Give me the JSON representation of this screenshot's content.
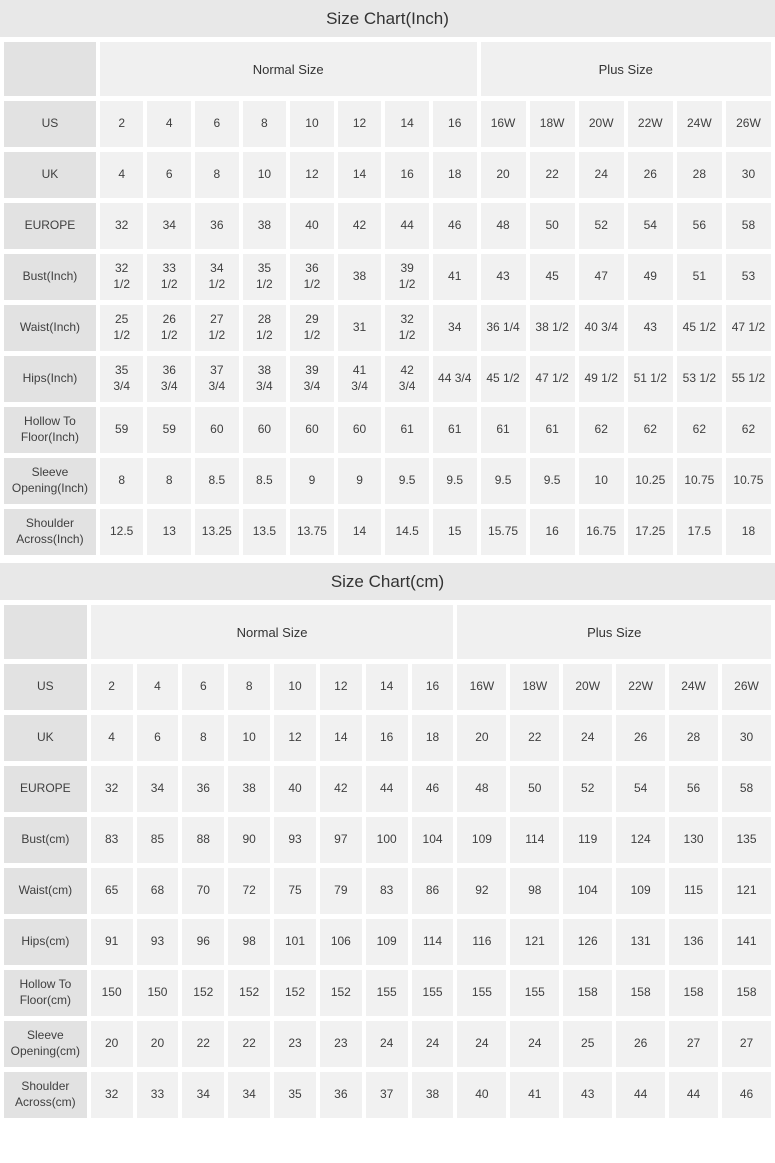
{
  "colors": {
    "title_band_bg": "#e8e8e8",
    "group_header_bg": "#f0f0f0",
    "row_label_bg": "#e2e2e2",
    "data_cell_bg": "#f1f1f1",
    "gap_color": "#ffffff",
    "text": "#3f3f3f"
  },
  "sections": [
    {
      "title": "Size Chart(Inch)",
      "group_headers": {
        "normal": "Normal Size",
        "plus": "Plus Size"
      },
      "rows": [
        {
          "label": "US",
          "values": [
            "2",
            "4",
            "6",
            "8",
            "10",
            "12",
            "14",
            "16",
            "16W",
            "18W",
            "20W",
            "22W",
            "24W",
            "26W"
          ]
        },
        {
          "label": "UK",
          "values": [
            "4",
            "6",
            "8",
            "10",
            "12",
            "14",
            "16",
            "18",
            "20",
            "22",
            "24",
            "26",
            "28",
            "30"
          ]
        },
        {
          "label": "EUROPE",
          "values": [
            "32",
            "34",
            "36",
            "38",
            "40",
            "42",
            "44",
            "46",
            "48",
            "50",
            "52",
            "54",
            "56",
            "58"
          ]
        },
        {
          "label": "Bust(Inch)",
          "values": [
            "32\n1/2",
            "33\n1/2",
            "34\n1/2",
            "35\n1/2",
            "36\n1/2",
            "38",
            "39\n1/2",
            "41",
            "43",
            "45",
            "47",
            "49",
            "51",
            "53"
          ]
        },
        {
          "label": "Waist(Inch)",
          "values": [
            "25\n1/2",
            "26\n1/2",
            "27\n1/2",
            "28\n1/2",
            "29\n1/2",
            "31",
            "32\n1/2",
            "34",
            "36 1/4",
            "38 1/2",
            "40 3/4",
            "43",
            "45 1/2",
            "47 1/2"
          ]
        },
        {
          "label": "Hips(Inch)",
          "values": [
            "35\n3/4",
            "36\n3/4",
            "37\n3/4",
            "38\n3/4",
            "39\n3/4",
            "41\n3/4",
            "42\n3/4",
            "44 3/4",
            "45 1/2",
            "47 1/2",
            "49 1/2",
            "51 1/2",
            "53 1/2",
            "55 1/2"
          ]
        },
        {
          "label": "Hollow To\nFloor(Inch)",
          "values": [
            "59",
            "59",
            "60",
            "60",
            "60",
            "60",
            "61",
            "61",
            "61",
            "61",
            "62",
            "62",
            "62",
            "62"
          ]
        },
        {
          "label": "Sleeve\nOpening(Inch)",
          "values": [
            "8",
            "8",
            "8.5",
            "8.5",
            "9",
            "9",
            "9.5",
            "9.5",
            "9.5",
            "9.5",
            "10",
            "10.25",
            "10.75",
            "10.75"
          ]
        },
        {
          "label": "Shoulder\nAcross(Inch)",
          "values": [
            "12.5",
            "13",
            "13.25",
            "13.5",
            "13.75",
            "14",
            "14.5",
            "15",
            "15.75",
            "16",
            "16.75",
            "17.25",
            "17.5",
            "18"
          ]
        }
      ]
    },
    {
      "title": "Size Chart(cm)",
      "group_headers": {
        "normal": "Normal Size",
        "plus": "Plus Size"
      },
      "rows": [
        {
          "label": "US",
          "values": [
            "2",
            "4",
            "6",
            "8",
            "10",
            "12",
            "14",
            "16",
            "16W",
            "18W",
            "20W",
            "22W",
            "24W",
            "26W"
          ]
        },
        {
          "label": "UK",
          "values": [
            "4",
            "6",
            "8",
            "10",
            "12",
            "14",
            "16",
            "18",
            "20",
            "22",
            "24",
            "26",
            "28",
            "30"
          ]
        },
        {
          "label": "EUROPE",
          "values": [
            "32",
            "34",
            "36",
            "38",
            "40",
            "42",
            "44",
            "46",
            "48",
            "50",
            "52",
            "54",
            "56",
            "58"
          ]
        },
        {
          "label": "Bust(cm)",
          "values": [
            "83",
            "85",
            "88",
            "90",
            "93",
            "97",
            "100",
            "104",
            "109",
            "114",
            "119",
            "124",
            "130",
            "135"
          ]
        },
        {
          "label": "Waist(cm)",
          "values": [
            "65",
            "68",
            "70",
            "72",
            "75",
            "79",
            "83",
            "86",
            "92",
            "98",
            "104",
            "109",
            "115",
            "121"
          ]
        },
        {
          "label": "Hips(cm)",
          "values": [
            "91",
            "93",
            "96",
            "98",
            "101",
            "106",
            "109",
            "114",
            "116",
            "121",
            "126",
            "131",
            "136",
            "141"
          ]
        },
        {
          "label": "Hollow To\nFloor(cm)",
          "values": [
            "150",
            "150",
            "152",
            "152",
            "152",
            "152",
            "155",
            "155",
            "155",
            "155",
            "158",
            "158",
            "158",
            "158"
          ]
        },
        {
          "label": "Sleeve\nOpening(cm)",
          "values": [
            "20",
            "20",
            "22",
            "22",
            "23",
            "23",
            "24",
            "24",
            "24",
            "24",
            "25",
            "26",
            "27",
            "27"
          ]
        },
        {
          "label": "Shoulder\nAcross(cm)",
          "values": [
            "32",
            "33",
            "34",
            "34",
            "35",
            "36",
            "37",
            "38",
            "40",
            "41",
            "43",
            "44",
            "44",
            "46"
          ]
        }
      ]
    }
  ]
}
